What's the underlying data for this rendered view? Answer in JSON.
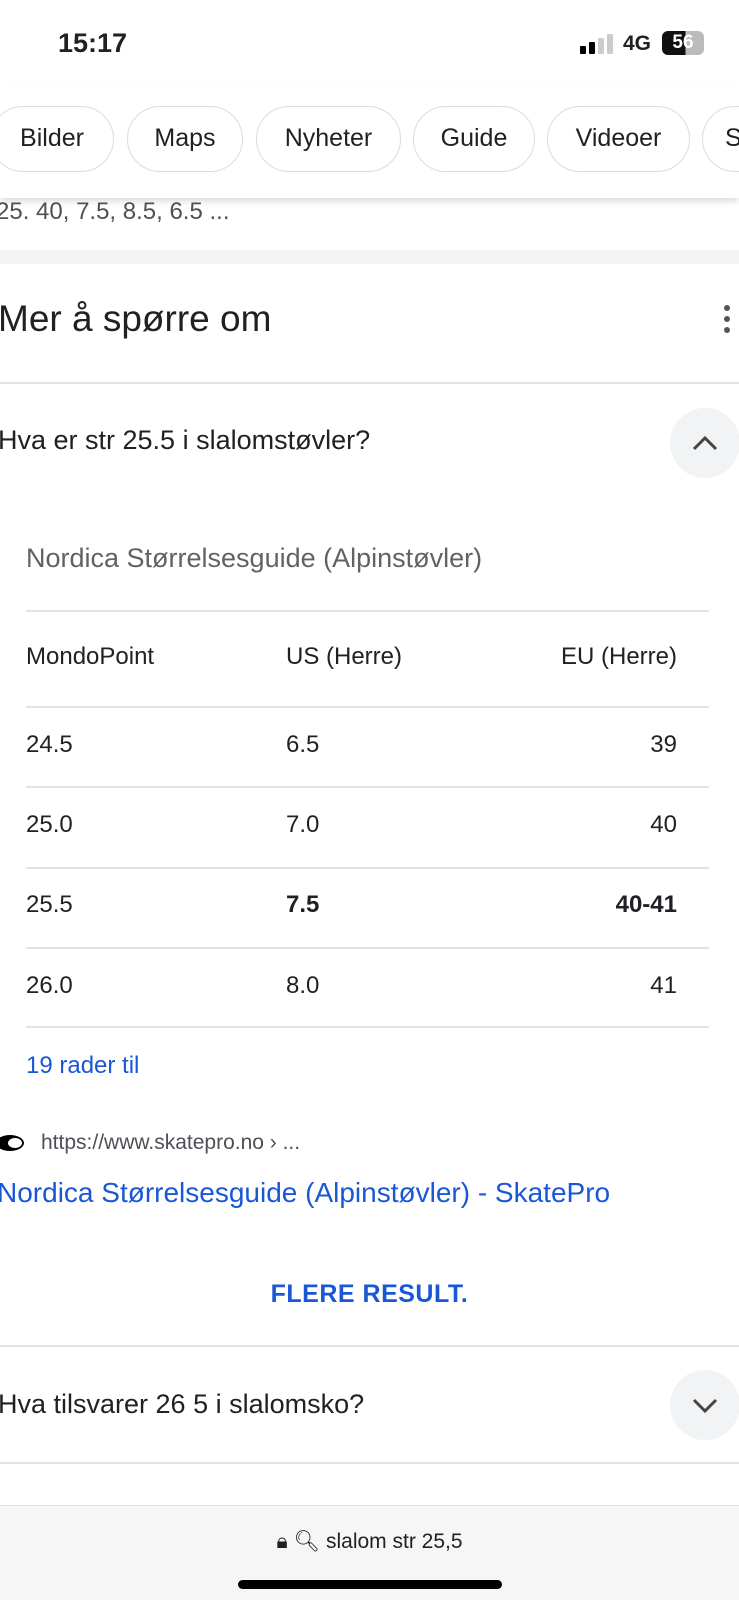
{
  "status": {
    "time": "15:17",
    "network": "4G",
    "battery": "56"
  },
  "tabs": [
    "Bilder",
    "Maps",
    "Nyheter",
    "Guide",
    "Videoer",
    "S"
  ],
  "snippet": "25. 40, 7.5, 8.5, 6.5 ...",
  "section_title": "Mer å spørre om",
  "questions": [
    {
      "text": "Hva er str 25.5 i slalomstøvler?",
      "answer": {
        "table_title": "Nordica Størrelsesguide (Alpinstøvler)",
        "headers": [
          "MondoPoint",
          "US (Herre)",
          "EU (Herre)"
        ],
        "rows": [
          [
            "24.5",
            "6.5",
            "39"
          ],
          [
            "25.0",
            "7.0",
            "40"
          ],
          [
            "25.5",
            "7.5",
            "40-41"
          ],
          [
            "26.0",
            "8.0",
            "41"
          ]
        ],
        "more_rows": "19 rader til",
        "source_url": "https://www.skatepro.no › ...",
        "source_title": "Nordica Størrelsesguide (Alpinstøvler) - SkatePro"
      },
      "more_button": "FLERE RESULT."
    },
    {
      "text": "Hva tilsvarer 26 5 i slalomsko?"
    }
  ],
  "address_bar": "slalom str 25,5"
}
